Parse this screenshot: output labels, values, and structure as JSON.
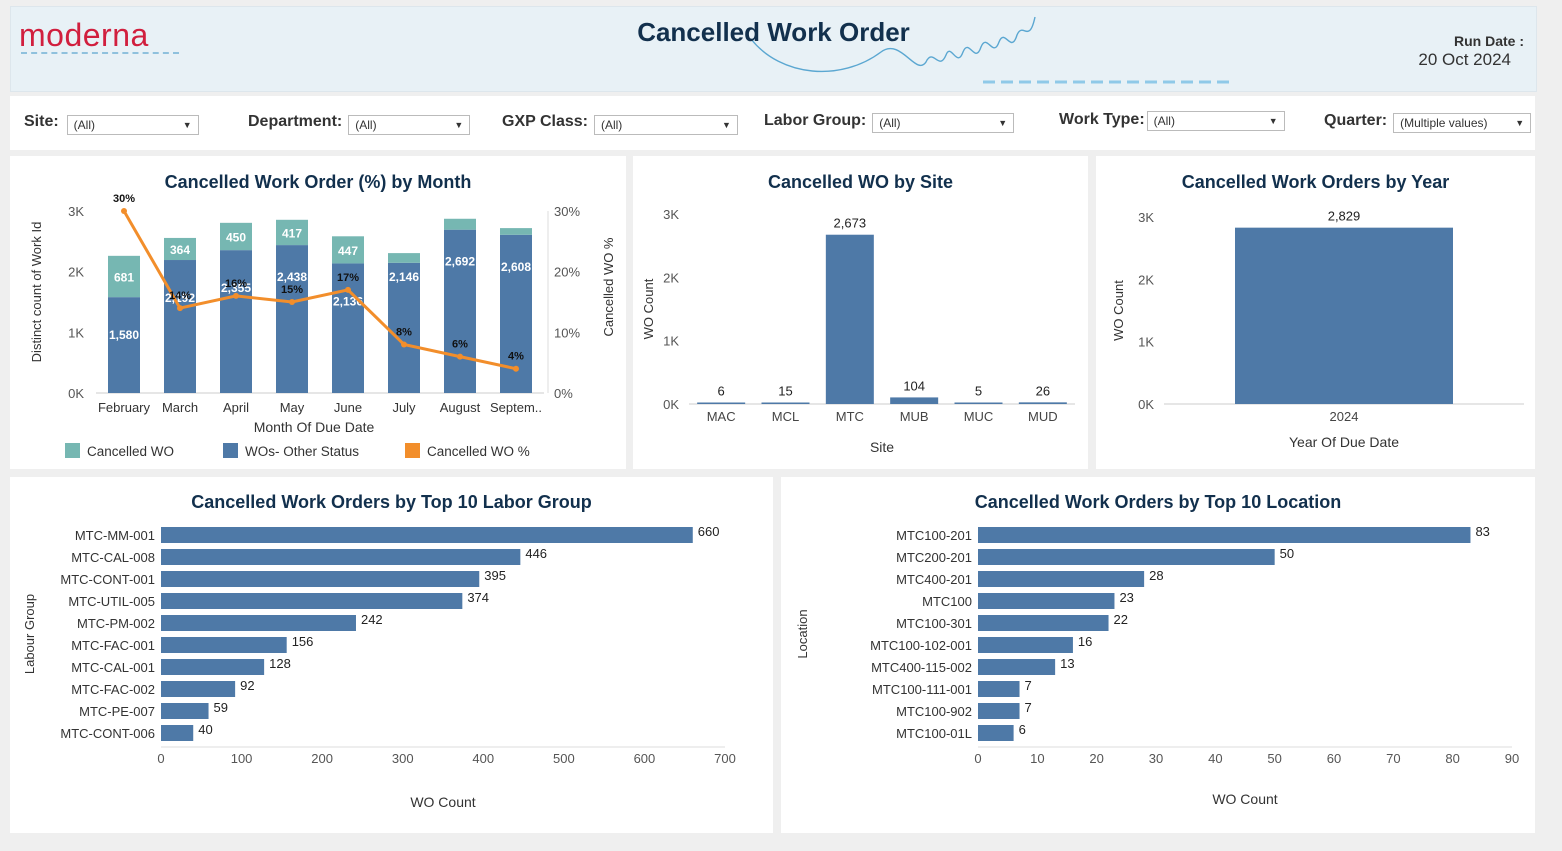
{
  "header": {
    "logo": "moderna",
    "title": "Cancelled Work Order",
    "run_date_label": "Run Date :",
    "run_date": "20 Oct 2024"
  },
  "filters": [
    {
      "label": "Site:",
      "value": "(All)"
    },
    {
      "label": "Department:",
      "value": "(All)"
    },
    {
      "label": "GXP Class:",
      "value": "(All)"
    },
    {
      "label": "Labor Group:",
      "value": "(All)"
    },
    {
      "label": "Work Type:",
      "value": "(All)"
    },
    {
      "label": "Quarter:",
      "value": "(Multiple values)"
    }
  ],
  "colors": {
    "cancelled": "#76b7b2",
    "other": "#4e79a7",
    "line": "#f28e2b",
    "title": "#12304d"
  },
  "chart_data": [
    {
      "type": "bar",
      "stacked": true,
      "title": "Cancelled Work Order (%) by Month",
      "xlabel": "Month Of Due Date",
      "ylabel": "Distinct count of Work Id",
      "y2label": "Cancelled WO %",
      "ylim": [
        0,
        3000
      ],
      "yticks": [
        "0K",
        "1K",
        "2K",
        "3K"
      ],
      "y2lim": [
        0,
        30
      ],
      "y2ticks": [
        "0%",
        "10%",
        "20%",
        "30%"
      ],
      "categories": [
        "February",
        "March",
        "April",
        "May",
        "June",
        "July",
        "August",
        "Septem.."
      ],
      "series": [
        {
          "name": "Cancelled WO",
          "values": [
            681,
            364,
            450,
            417,
            447,
            160,
            180,
            110
          ],
          "labels": [
            "681",
            "364",
            "450",
            "417",
            "447",
            "",
            "",
            ""
          ]
        },
        {
          "name": "WOs- Other Status",
          "values": [
            1580,
            2192,
            2355,
            2438,
            2136,
            2146,
            2692,
            2608
          ],
          "labels": [
            "1,580",
            "2,192",
            "2,355",
            "2,438",
            "2,136",
            "2,146",
            "2,692",
            "2,608"
          ]
        },
        {
          "name": "Cancelled WO %",
          "values": [
            30,
            14,
            16,
            15,
            17,
            8,
            6,
            4
          ],
          "labels": [
            "30%",
            "14%",
            "16%",
            "15%",
            "17%",
            "8%",
            "6%",
            "4%"
          ]
        }
      ],
      "legend": "bottom"
    },
    {
      "type": "bar",
      "title": "Cancelled WO by Site",
      "xlabel": "Site",
      "ylabel": "WO Count",
      "ylim": [
        0,
        3000
      ],
      "yticks": [
        "0K",
        "1K",
        "2K",
        "3K"
      ],
      "categories": [
        "MAC",
        "MCL",
        "MTC",
        "MUB",
        "MUC",
        "MUD"
      ],
      "values": [
        6,
        15,
        2673,
        104,
        5,
        26
      ],
      "labels": [
        "6",
        "15",
        "2,673",
        "104",
        "5",
        "26"
      ]
    },
    {
      "type": "bar",
      "title": "Cancelled Work Orders by Year",
      "xlabel": "Year Of Due Date",
      "ylabel": "WO Count",
      "ylim": [
        0,
        3000
      ],
      "yticks": [
        "0K",
        "1K",
        "2K",
        "3K"
      ],
      "categories": [
        "2024"
      ],
      "values": [
        2829
      ],
      "labels": [
        "2,829"
      ]
    },
    {
      "type": "bar",
      "orientation": "horizontal",
      "title": "Cancelled Work Orders by Top 10 Labor Group",
      "xlabel": "WO Count",
      "ylabel": "Labour Group",
      "xlim": [
        0,
        700
      ],
      "xticks": [
        "0",
        "100",
        "200",
        "300",
        "400",
        "500",
        "600",
        "700"
      ],
      "categories": [
        "MTC-MM-001",
        "MTC-CAL-008",
        "MTC-CONT-001",
        "MTC-UTIL-005",
        "MTC-PM-002",
        "MTC-FAC-001",
        "MTC-CAL-001",
        "MTC-FAC-002",
        "MTC-PE-007",
        "MTC-CONT-006"
      ],
      "values": [
        660,
        446,
        395,
        374,
        242,
        156,
        128,
        92,
        59,
        40
      ],
      "labels": [
        "660",
        "446",
        "395",
        "374",
        "242",
        "156",
        "128",
        "92",
        "59",
        "40"
      ]
    },
    {
      "type": "bar",
      "orientation": "horizontal",
      "title": "Cancelled Work Orders by Top 10 Location",
      "xlabel": "WO Count",
      "ylabel": "Location",
      "xlim": [
        0,
        90
      ],
      "xticks": [
        "0",
        "10",
        "20",
        "30",
        "40",
        "50",
        "60",
        "70",
        "80",
        "90"
      ],
      "categories": [
        "MTC100-201",
        "MTC200-201",
        "MTC400-201",
        "MTC100",
        "MTC100-301",
        "MTC100-102-001",
        "MTC400-115-002",
        "MTC100-111-001",
        "MTC100-902",
        "MTC100-01L"
      ],
      "values": [
        83,
        50,
        28,
        23,
        22,
        16,
        13,
        7,
        7,
        6
      ],
      "labels": [
        "83",
        "50",
        "28",
        "23",
        "22",
        "16",
        "13",
        "7",
        "7",
        "6"
      ]
    }
  ]
}
